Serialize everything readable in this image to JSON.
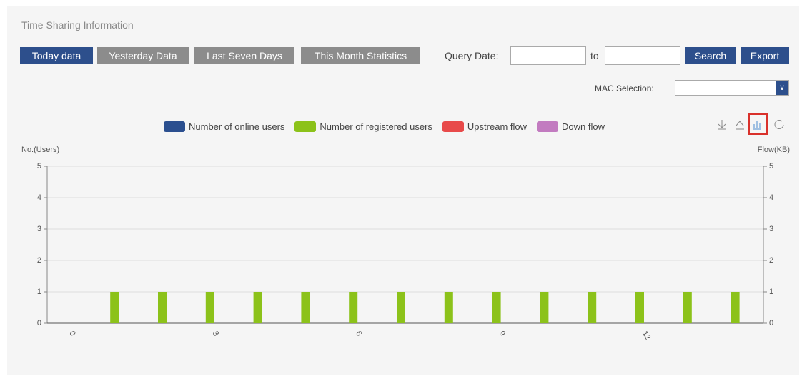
{
  "window": {
    "title": "Time Sharing Information",
    "tabs": [
      "Today data",
      "Yesterday Data",
      "Last Seven Days",
      "This Month Statistics"
    ],
    "query_date_label": "Query Date:",
    "to_label": "to",
    "search_button": "Search",
    "export_button": "Export",
    "mac_selection_label": "MAC Selection:"
  },
  "chart_data": {
    "type": "bar",
    "y_label": "No.(Users)",
    "y2_label": "Flow(KB)",
    "categories": [
      "0",
      null,
      null,
      "3",
      null,
      null,
      "6",
      null,
      null,
      "9",
      null,
      null,
      "12",
      null,
      null
    ],
    "series": [
      {
        "name": "Number of online users",
        "color": "#2b4f8f",
        "values": [
          0,
          0,
          0,
          0,
          0,
          0,
          0,
          0,
          0,
          0,
          0,
          0,
          0,
          0,
          0
        ]
      },
      {
        "name": "Number of registered users",
        "color": "#8cc21a",
        "values": [
          0,
          1,
          1,
          1,
          1,
          1,
          1,
          1,
          1,
          1,
          1,
          1,
          1,
          1,
          1
        ]
      },
      {
        "name": "Upstream flow",
        "color": "#e84a4a",
        "axis": "y2",
        "values": [
          0,
          0,
          0,
          0,
          0,
          0,
          0,
          0,
          0,
          0,
          0,
          0,
          0,
          0,
          0
        ]
      },
      {
        "name": "Down flow",
        "color": "#c27bc0",
        "axis": "y2",
        "values": [
          0,
          0,
          0,
          0,
          0,
          0,
          0,
          0,
          0,
          0,
          0,
          0,
          0,
          0,
          0
        ]
      }
    ],
    "ylim": [
      0,
      5
    ],
    "yticks": [
      0,
      1,
      2,
      3,
      4,
      5
    ],
    "y2lim": [
      0,
      5
    ],
    "y2ticks": [
      0,
      1,
      2,
      3,
      4,
      5
    ],
    "grid": true
  }
}
